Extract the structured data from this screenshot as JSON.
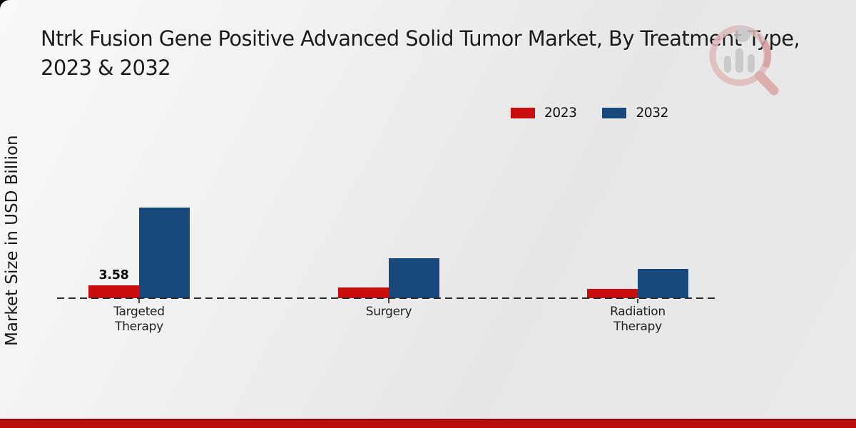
{
  "title_lines": [
    "Ntrk Fusion Gene Positive Advanced Solid Tumor Market, By Treatment Type,",
    "2023 & 2032"
  ],
  "chart_data": {
    "type": "bar",
    "title": "Ntrk Fusion Gene Positive Advanced Solid Tumor Market, By Treatment Type, 2023 & 2032",
    "xlabel": "",
    "ylabel": "Market Size in USD Billion",
    "categories": [
      "Targeted Therapy",
      "Surgery",
      "Radiation Therapy"
    ],
    "series": [
      {
        "name": "2023",
        "color": "#c90d0d",
        "values": [
          3.58,
          3.0,
          2.6
        ]
      },
      {
        "name": "2032",
        "color": "#17497d",
        "values": [
          25.2,
          11.1,
          8.1
        ]
      }
    ],
    "data_labels": [
      {
        "series_index": 0,
        "category_index": 0,
        "text": "3.58"
      }
    ],
    "ylim": [
      0,
      27
    ],
    "grid": false,
    "legend_position": "upper-right",
    "baseline_style": "dashed"
  },
  "colors": {
    "bar_red": "#c90d0d",
    "bar_blue": "#17497d",
    "footer_red": "#b90c0c",
    "watermark_pink": "#e0baba",
    "watermark_gray": "#c5c5c8"
  },
  "icons": {
    "watermark": "magnifier-bar-chart-logo"
  }
}
